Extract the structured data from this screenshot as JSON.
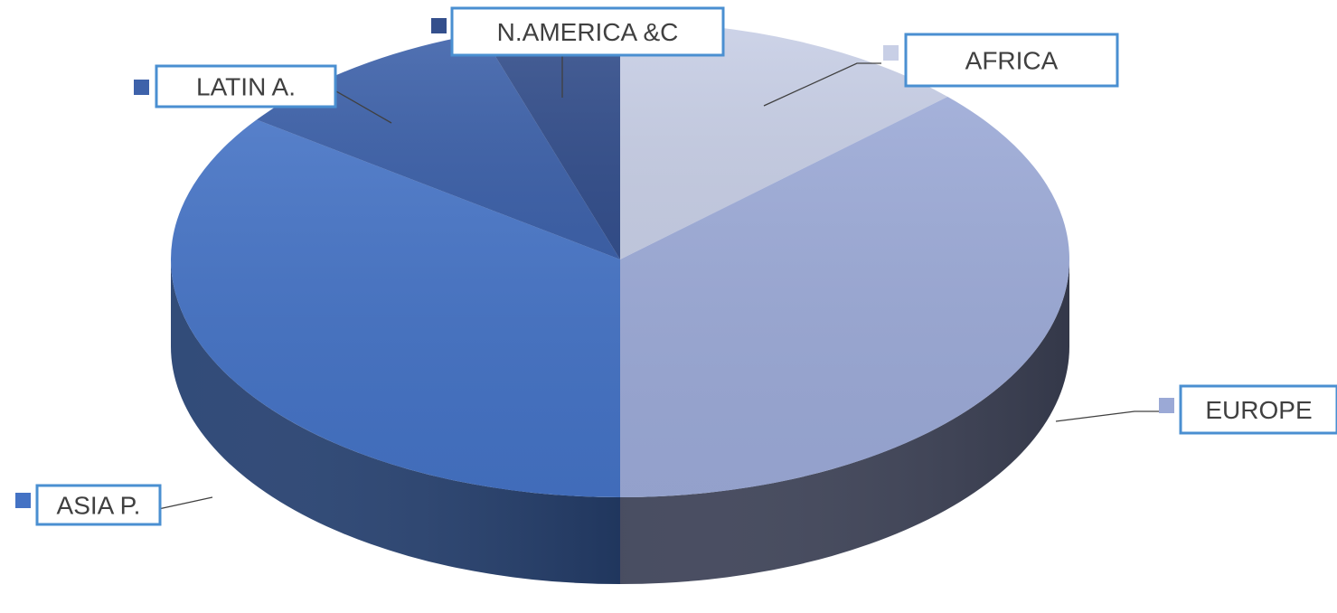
{
  "chart_data": {
    "type": "pie",
    "variant": "3d",
    "legend": "none",
    "slices": [
      {
        "label": "AFRICA",
        "value": 13,
        "color": "#c8cfe6"
      },
      {
        "label": "EUROPE",
        "value": 37,
        "color": "#9ba9d6"
      },
      {
        "label": "ASIA P.",
        "value": 35,
        "color": "#4472c4"
      },
      {
        "label": "LATIN A.",
        "value": 10,
        "color": "#3e62aa"
      },
      {
        "label": "N.AMERICA &C",
        "value": 5,
        "color": "#344f8c"
      }
    ]
  }
}
